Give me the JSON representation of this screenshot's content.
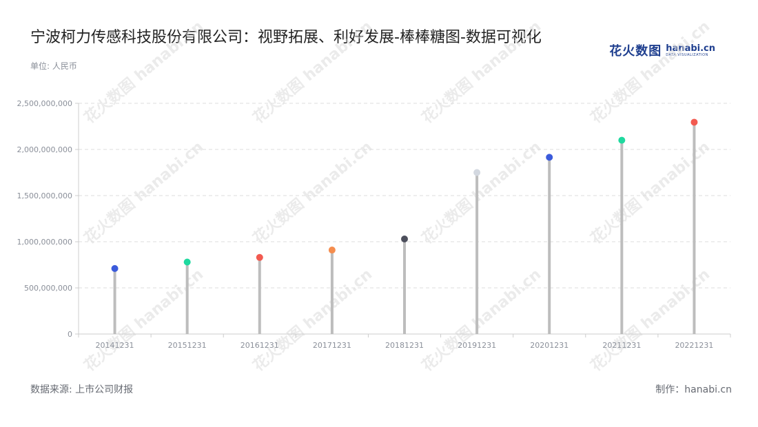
{
  "title": "宁波柯力传感科技股份有限公司：视野拓展、利好发展-棒棒糖图-数据可视化",
  "unit_label": "单位: 人民币",
  "logo": {
    "cn": "花火数图",
    "en": "hanabi.cn",
    "sub": "DATA VISUALIZATION"
  },
  "source": "数据来源: 上市公司财报",
  "maker": "制作：hanabi.cn",
  "watermark_text": "花火数图 hanabi.cn",
  "chart_data": {
    "type": "lollipop",
    "title": "宁波柯力传感科技股份有限公司：视野拓展、利好发展-棒棒糖图-数据可视化",
    "xlabel": "",
    "ylabel": "单位: 人民币",
    "ylim": [
      0,
      2500000000
    ],
    "yticks": [
      0,
      500000000,
      1000000000,
      1500000000,
      2000000000,
      2500000000
    ],
    "ytick_labels": [
      "0",
      "500,000,000",
      "1,000,000,000",
      "1,500,000,000",
      "2,000,000,000",
      "2,500,000,000"
    ],
    "grid": true,
    "categories": [
      "20141231",
      "20151231",
      "20161231",
      "20171231",
      "20181231",
      "20191231",
      "20201231",
      "20211231",
      "20221231"
    ],
    "values": [
      710000000,
      780000000,
      830000000,
      910000000,
      1030000000,
      1750000000,
      1915000000,
      2100000000,
      2295000000
    ],
    "colors": [
      "#3b5bdb",
      "#1fd99f",
      "#f25a50",
      "#f58d4e",
      "#4d4f5c",
      "#d3d8e0",
      "#3b5bdb",
      "#1fd99f",
      "#f25a50"
    ],
    "stem_color": "#bdbdbd"
  }
}
